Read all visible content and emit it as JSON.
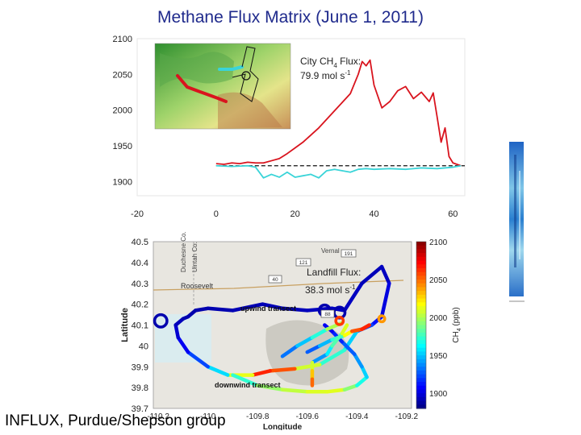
{
  "title": "Methane Flux Matrix (June 1, 2011)",
  "credit": "INFLUX, Purdue/Shepson group",
  "chart_data": [
    {
      "type": "line",
      "ylim": [
        1880,
        2100
      ],
      "xlim": [
        -20,
        63
      ],
      "yticks": [
        "2100",
        "2050",
        "2000",
        "1950",
        "1900"
      ],
      "xticks": [
        "-20",
        "0",
        "20",
        "40",
        "60"
      ],
      "annotation": {
        "line1_prefix": "City CH",
        "line1_sub": "4",
        "line1_suffix": " Flux:",
        "line2_value": "79.9 mol s",
        "line2_sup": "-1"
      },
      "background_level": 1922,
      "series": [
        {
          "color": "#d9141e",
          "x": [
            0,
            2,
            4,
            6,
            8,
            10,
            12,
            14,
            16,
            18,
            20,
            22,
            24,
            26,
            28,
            30,
            32,
            34,
            36,
            37,
            38,
            39,
            40,
            42,
            44,
            46,
            48,
            50,
            52,
            54,
            55,
            56,
            57,
            58,
            59,
            60,
            62
          ],
          "y": [
            1925,
            1924,
            1926,
            1925,
            1927,
            1926,
            1926,
            1929,
            1932,
            1939,
            1947,
            1955,
            1965,
            1975,
            1987,
            1999,
            2011,
            2023,
            2050,
            2068,
            2062,
            2070,
            2035,
            2003,
            2012,
            2027,
            2033,
            2016,
            2025,
            2012,
            2024,
            1990,
            1955,
            1975,
            1935,
            1926,
            1922
          ]
        },
        {
          "color": "#3ad4d8",
          "x": [
            0,
            4,
            8,
            10,
            12,
            14,
            16,
            18,
            20,
            22,
            24,
            26,
            28,
            30,
            32,
            34,
            36,
            38,
            40,
            44,
            48,
            52,
            56,
            60,
            62
          ],
          "y": [
            1922,
            1921,
            1922,
            1920,
            1905,
            1910,
            1906,
            1913,
            1906,
            1908,
            1910,
            1905,
            1915,
            1917,
            1915,
            1913,
            1917,
            1918,
            1917,
            1918,
            1917,
            1919,
            1918,
            1920,
            1922
          ]
        }
      ]
    },
    {
      "type": "scatter",
      "xlabel": "Longitude",
      "ylabel": "Latitude",
      "xlim": [
        -110.22,
        -109.18
      ],
      "ylim": [
        39.7,
        40.5
      ],
      "xticks": [
        "-110.2",
        "-110",
        "-109.8",
        "-109.6",
        "-109.4",
        "-109.2"
      ],
      "yticks": [
        "40.5",
        "40.4",
        "40.3",
        "40.2",
        "40.1",
        "40",
        "39.9",
        "39.8",
        "39.7"
      ],
      "colorbar": {
        "label_prefix": "CH",
        "label_sub": "4",
        "label_suffix": " (ppb)",
        "range": [
          1880,
          2100
        ],
        "ticks": [
          "2100",
          "2050",
          "2000",
          "1950",
          "1900"
        ]
      },
      "annotation": {
        "line1": "Landfill  Flux:",
        "line2_value": "38.3 mol s",
        "line2_sup": "-1"
      },
      "map_labels": {
        "upwind": "upwind transect",
        "downwind": "downwind transect",
        "town": "Roosevelt",
        "county1": "Duchesne Co.",
        "county2": "Uintah Co.",
        "road": "Vernal",
        "shield1": "121",
        "shield2": "40",
        "shield3": "88",
        "shield4": "191"
      },
      "tracks": [
        {
          "x": [
            -110.08,
            -110.05,
            -110.0,
            -109.9,
            -109.78,
            -109.7,
            -109.6,
            -109.5,
            -109.45
          ],
          "y": [
            40.14,
            40.17,
            40.18,
            40.17,
            40.2,
            40.18,
            40.17,
            40.18,
            40.17
          ],
          "ch4": [
            1890,
            1890,
            1890,
            1891,
            1892,
            1892,
            1893,
            1894,
            1895
          ]
        },
        {
          "x": [
            -109.45,
            -109.38,
            -109.3,
            -109.27,
            -109.3,
            -109.34,
            -109.4
          ],
          "y": [
            40.17,
            40.3,
            40.38,
            40.3,
            40.14,
            40.1,
            40.07
          ],
          "ch4": [
            1895,
            1893,
            1892,
            1896,
            1905,
            1915,
            1930
          ]
        },
        {
          "x": [
            -109.4,
            -109.45,
            -109.55,
            -109.65,
            -109.75,
            -109.82,
            -109.92,
            -110.0,
            -110.08,
            -110.12,
            -110.13,
            -110.1,
            -110.08
          ],
          "y": [
            40.07,
            39.98,
            39.91,
            39.89,
            39.88,
            39.86,
            39.86,
            39.9,
            39.97,
            40.04,
            40.1,
            40.13,
            40.14
          ],
          "ch4": [
            1945,
            1960,
            1985,
            2030,
            2080,
            2050,
            1975,
            1935,
            1910,
            1900,
            1895,
            1891,
            1890
          ]
        },
        {
          "x": [
            -109.9,
            -109.8,
            -109.7,
            -109.6,
            -109.52,
            -109.45,
            -109.4,
            -109.36
          ],
          "y": [
            39.86,
            39.81,
            39.79,
            39.78,
            39.78,
            39.79,
            39.81,
            39.85
          ],
          "ch4": [
            1955,
            1990,
            2000,
            2008,
            2012,
            2010,
            1975,
            1960
          ]
        },
        {
          "x": [
            -109.36,
            -109.38,
            -109.41,
            -109.46,
            -109.5,
            -109.53
          ],
          "y": [
            39.85,
            39.9,
            39.96,
            40.02,
            40.07,
            40.1
          ],
          "ch4": [
            1960,
            1945,
            1935,
            1920,
            1910,
            1900
          ]
        },
        {
          "x": [
            -109.6,
            -109.55,
            -109.5,
            -109.45,
            -109.42,
            -109.38,
            -109.35
          ],
          "y": [
            39.97,
            40.0,
            40.03,
            40.05,
            40.07,
            40.08,
            40.1
          ],
          "ch4": [
            1920,
            1935,
            1960,
            1985,
            2050,
            2060,
            2070
          ]
        },
        {
          "x": [
            -109.58,
            -109.52,
            -109.5,
            -109.46,
            -109.44
          ],
          "y": [
            39.92,
            39.96,
            40.0,
            40.06,
            40.1
          ],
          "ch4": [
            1930,
            1950,
            1970,
            1990,
            2030
          ]
        },
        {
          "x": [
            -109.7,
            -109.64,
            -109.58,
            -109.52,
            -109.46
          ],
          "y": [
            39.95,
            40.0,
            40.04,
            40.08,
            40.11
          ],
          "ch4": [
            1925,
            1940,
            1960,
            1980,
            2020
          ]
        },
        {
          "x": [
            -109.58,
            -109.58,
            -109.58,
            -109.58
          ],
          "y": [
            39.92,
            39.88,
            39.84,
            39.81
          ],
          "ch4": [
            1995,
            2020,
            2040,
            2060
          ]
        }
      ],
      "loops": [
        {
          "cx": -110.19,
          "cy": 40.12,
          "r": 0.025,
          "ch4": 1890
        },
        {
          "cx": -109.53,
          "cy": 40.17,
          "r": 0.022,
          "ch4": 1890
        },
        {
          "cx": -109.47,
          "cy": 40.16,
          "r": 0.022,
          "ch4": 1890
        },
        {
          "cx": -109.3,
          "cy": 40.13,
          "r": 0.012,
          "ch4": 2040
        },
        {
          "cx": -109.47,
          "cy": 40.12,
          "r": 0.015,
          "ch4": 2060
        }
      ]
    }
  ]
}
